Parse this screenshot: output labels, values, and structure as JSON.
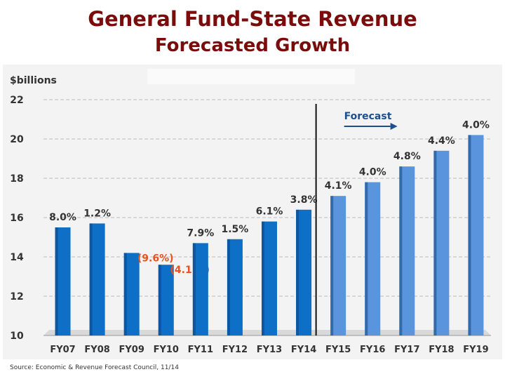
{
  "page": {
    "title": "General Fund-State Revenue",
    "subtitle": "Forecasted Growth",
    "source": "Source: Economic & Revenue Forecast Council, 11/14"
  },
  "chart_data": {
    "type": "bar",
    "ylabel": "$billions",
    "ylim": [
      10,
      22
    ],
    "yticks": [
      10,
      12,
      14,
      16,
      18,
      20,
      22
    ],
    "grid": true,
    "categories": [
      "FY07",
      "FY08",
      "FY09",
      "FY10",
      "FY11",
      "FY12",
      "FY13",
      "FY14",
      "FY15",
      "FY16",
      "FY17",
      "FY18",
      "FY19"
    ],
    "values": [
      15.5,
      15.7,
      14.2,
      13.6,
      14.7,
      14.9,
      15.8,
      16.4,
      17.1,
      17.8,
      18.6,
      19.4,
      20.2
    ],
    "labels": [
      "8.0%",
      "1.2%",
      "(9.6%)",
      "(4.1 %)",
      "7.9%",
      "1.5%",
      "6.1%",
      "3.8%",
      "4.1%",
      "4.0%",
      "4.8%",
      "4.4%",
      "4.0%"
    ],
    "negative_label_color": "#e8521c",
    "label_color": "#333333",
    "actual_color": "#0e6fc6",
    "forecast_color": "#5a94dc",
    "forecast_start_index": 8,
    "forecast_label": "Forecast",
    "forecast_label_color": "#1f4e8c"
  }
}
